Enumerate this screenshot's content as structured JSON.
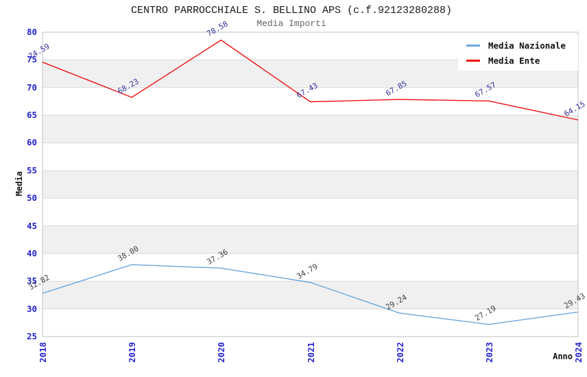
{
  "title": "CENTRO PARROCCHIALE S. BELLINO APS (c.f.92123280288)",
  "subtitle": "Media Importi",
  "chart_data": {
    "type": "line",
    "title": "CENTRO PARROCCHIALE S. BELLINO APS (c.f.92123280288)",
    "subtitle": "Media Importi",
    "xlabel": "Anno",
    "ylabel": "Media",
    "categories": [
      "2018",
      "2019",
      "2020",
      "2021",
      "2022",
      "2023",
      "2024"
    ],
    "ylim": [
      25,
      80
    ],
    "yticks": [
      25,
      30,
      35,
      40,
      45,
      50,
      55,
      60,
      65,
      70,
      75,
      80
    ],
    "grid": "horizontal-bands",
    "legend_position": "top-right",
    "series": [
      {
        "name": "Media Nazionale",
        "color": "#6aa7dc",
        "label_color": "#404040",
        "values": [
          32.82,
          38.0,
          37.36,
          34.79,
          29.24,
          27.19,
          29.43
        ],
        "labels": [
          "32.82",
          "38.00",
          "37.36",
          "34.79",
          "29.24",
          "27.19",
          "29.43"
        ]
      },
      {
        "name": "Media Ente",
        "color": "#ee1111",
        "label_color": "#333399",
        "values": [
          74.59,
          68.23,
          78.58,
          67.43,
          67.85,
          67.57,
          64.15
        ],
        "labels": [
          "74.59",
          "68.23",
          "78.58",
          "67.43",
          "67.85",
          "67.57",
          "64.15"
        ]
      }
    ]
  },
  "colors": {
    "tick_label": "#2323cd",
    "band_fill": "#f0f0f0",
    "grid_line": "#d9d9d9",
    "plot_border": "#bfbfbf",
    "title": "#1a1a1a",
    "subtitle": "#666666"
  }
}
